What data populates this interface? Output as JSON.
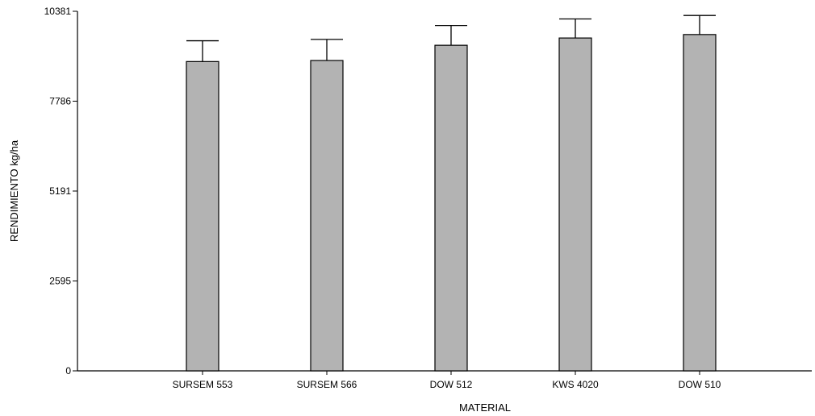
{
  "chart_data": {
    "type": "bar",
    "title": "",
    "xlabel": "MATERIAL",
    "ylabel": "RENDIMIENTO kg/ha",
    "categories": [
      "SURSEM 553",
      "SURSEM 566",
      "DOW 512",
      "KWS 4020",
      "DOW 510"
    ],
    "values": [
      8930,
      8960,
      9400,
      9610,
      9710
    ],
    "error_upper": [
      9530,
      9570,
      9970,
      10160,
      10260
    ],
    "ylim": [
      0,
      10381
    ],
    "yticks": [
      0,
      2595,
      5191,
      7786,
      10381
    ],
    "ytick_labels": [
      "0",
      "2595",
      "5191",
      "7786",
      "10381"
    ],
    "grid": false,
    "legend": "none",
    "bar_color": "#b3b3b3"
  }
}
